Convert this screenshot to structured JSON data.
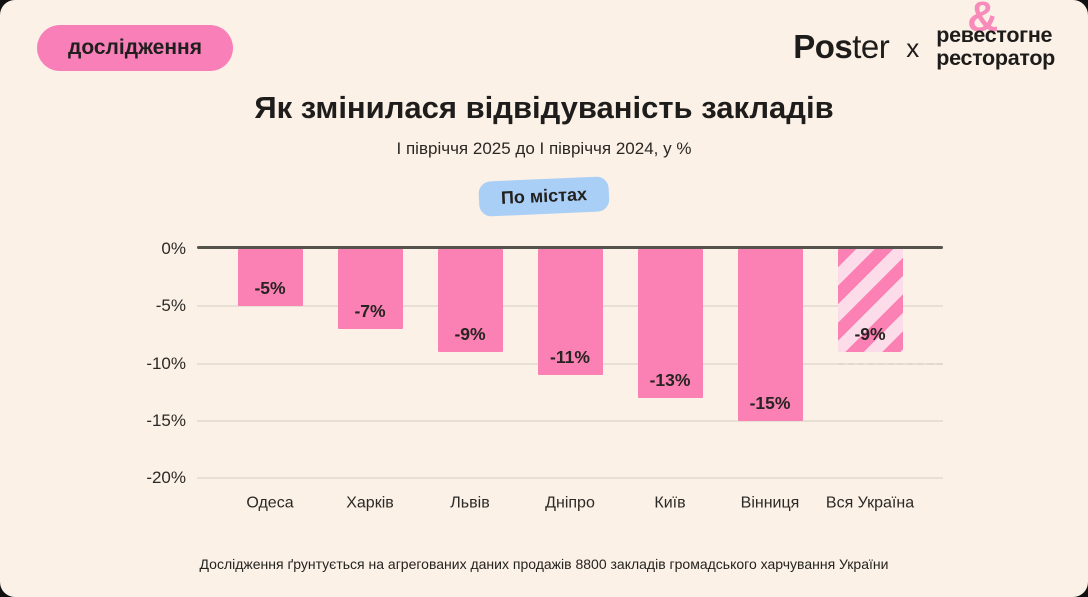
{
  "badge": {
    "label": "дослідження"
  },
  "logos": {
    "poster_bold": "Pos",
    "poster_light": "ter",
    "separator": "x",
    "partner_line1_left": "реве",
    "partner_amp": "&",
    "partner_line1_right": "стогне",
    "partner_line2": "ресторатор"
  },
  "title": "Як змінилася відвідуваність закладів",
  "subtitle": "І півріччя 2025 до І півріччя 2024, у %",
  "filter_badge": "По містах",
  "footnote": "Дослідження ґрунтується на агрегованих даних продажів 8800 закладів громадського харчування України",
  "colors": {
    "background": "#FBF1E7",
    "bar_pink": "#FB81B5",
    "badge_pink": "#F97FB9",
    "stripe_light": "#FBDCE8",
    "badge_blue": "#A9CFF7",
    "text_dark": "#25231F",
    "axis": "#56524C",
    "gridline": "#E9E0D5"
  },
  "chart_data": {
    "type": "bar",
    "categories": [
      "Одеса",
      "Харків",
      "Львів",
      "Дніпро",
      "Київ",
      "Вінниця",
      "Вся Україна"
    ],
    "values": [
      -5,
      -7,
      -9,
      -11,
      -13,
      -15,
      -9
    ],
    "value_labels": [
      "-5%",
      "-7%",
      "-9%",
      "-11%",
      "-13%",
      "-15%",
      "-9%"
    ],
    "striped_category": "Вся Україна",
    "title": "Як змінилася відвідуваність закладів",
    "subtitle": "І півріччя 2025 до І півріччя 2024, у %",
    "xlabel": "",
    "ylabel": "",
    "ylim": [
      -20,
      0
    ],
    "yticks": [
      "0%",
      "-5%",
      "-10%",
      "-15%",
      "-20%"
    ],
    "grid": true,
    "legend": false,
    "bar_color": "#FB81B5"
  }
}
